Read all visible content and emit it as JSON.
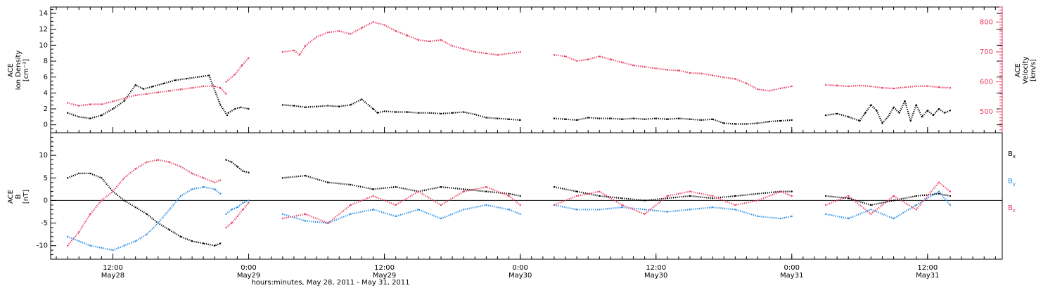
{
  "colors": {
    "black": "#000000",
    "red": "#e8385f",
    "blue": "#1e88e5"
  },
  "chart_data": [
    {
      "type": "scatter",
      "panel": "density-velocity",
      "ylabel_left_lines": [
        "ACE",
        "Ion Density",
        "[cm⁻³]"
      ],
      "ylabel_right_lines": [
        "ACE",
        "Velocity",
        "[km/s]"
      ],
      "ylim_left": [
        -1,
        14.8
      ],
      "ylim_right": [
        430,
        850
      ],
      "yticks_left": [
        0,
        2,
        4,
        6,
        8,
        10,
        12,
        14
      ],
      "yticks_right": [
        500,
        600,
        700,
        800
      ],
      "series": [
        {
          "color": "black",
          "axis": "left",
          "segments": [
            {
              "x": [
                8.0,
                9.0,
                10.0,
                11.0,
                12.0,
                13.0,
                14.0,
                14.7,
                15.5,
                16.5,
                17.5,
                18.5,
                19.5,
                20.5,
                21.5,
                22.1
              ],
              "y": [
                1.5,
                1.0,
                0.8,
                1.2,
                2.0,
                3.0,
                5.0,
                4.5,
                4.8,
                5.2,
                5.6,
                5.8,
                6.0,
                6.2,
                2.5,
                1.2
              ]
            },
            {
              "x": [
                22.2,
                22.8,
                23.3,
                24.0
              ],
              "y": [
                1.5,
                2.0,
                2.2,
                2.0
              ]
            },
            {
              "x": [
                27.0,
                28.0,
                29.0,
                30.0,
                31.0,
                32.0,
                33.0,
                34.0,
                35.0,
                35.4,
                36.0,
                37.0,
                38.0,
                39.0,
                40.0,
                41.0,
                42.0,
                43.0,
                44.0,
                45.0,
                46.0,
                47.0,
                48.0
              ],
              "y": [
                2.5,
                2.4,
                2.2,
                2.3,
                2.4,
                2.3,
                2.5,
                3.2,
                2.0,
                1.5,
                1.7,
                1.6,
                1.6,
                1.5,
                1.5,
                1.4,
                1.5,
                1.6,
                1.3,
                0.9,
                0.8,
                0.7,
                0.6
              ]
            },
            {
              "x": [
                51.0,
                52.0,
                53.0,
                54.0,
                55.0,
                56.0,
                57.0,
                58.0,
                59.0,
                60.0,
                61.0,
                62.0,
                63.0,
                64.0,
                65.0,
                66.0,
                67.0,
                68.0,
                69.0,
                70.0,
                71.0,
                72.0
              ],
              "y": [
                0.8,
                0.7,
                0.6,
                0.9,
                0.8,
                0.8,
                0.7,
                0.8,
                0.7,
                0.8,
                0.7,
                0.8,
                0.7,
                0.6,
                0.7,
                0.2,
                0.1,
                0.1,
                0.2,
                0.4,
                0.5,
                0.6
              ]
            },
            {
              "x": [
                75.0,
                76.0,
                77.0,
                78.0,
                78.5,
                79.0,
                79.5,
                80.0,
                80.5,
                81.0,
                81.5,
                82.0,
                82.5,
                83.0,
                83.5,
                84.0,
                84.5,
                85.0,
                85.5,
                86.0
              ],
              "y": [
                1.2,
                1.4,
                1.0,
                0.5,
                1.5,
                2.5,
                1.8,
                0.2,
                1.0,
                2.2,
                1.5,
                3.0,
                0.5,
                2.5,
                1.0,
                1.8,
                1.2,
                2.0,
                1.5,
                1.8
              ]
            }
          ]
        },
        {
          "color": "red",
          "axis": "right",
          "segments": [
            {
              "x": [
                8.0,
                9.0,
                10.0,
                11.0,
                12.0,
                13.0,
                14.0,
                15.0,
                16.0,
                17.0,
                18.0,
                19.0,
                20.0,
                21.0,
                21.5,
                22.0
              ],
              "y": [
                530,
                520,
                525,
                525,
                535,
                545,
                555,
                560,
                565,
                570,
                575,
                580,
                585,
                585,
                580,
                560
              ]
            },
            {
              "x": [
                22.0,
                22.8,
                23.4,
                24.0
              ],
              "y": [
                600,
                625,
                655,
                680
              ]
            },
            {
              "x": [
                27.0,
                28.0,
                28.5,
                29.0,
                30.0,
                31.0,
                32.0,
                33.0,
                34.0,
                35.0,
                36.0,
                37.0,
                38.0,
                39.0,
                40.0,
                41.0,
                42.0,
                43.0,
                44.0,
                45.0,
                46.0,
                47.0,
                48.0
              ],
              "y": [
                700,
                705,
                690,
                720,
                750,
                765,
                770,
                760,
                780,
                800,
                790,
                770,
                755,
                740,
                735,
                740,
                720,
                710,
                700,
                695,
                690,
                695,
                700
              ]
            },
            {
              "x": [
                51.0,
                52.0,
                53.0,
                54.0,
                55.0,
                56.0,
                57.0,
                58.0,
                59.0,
                60.0,
                61.0,
                62.0,
                63.0,
                64.0,
                65.0,
                66.0,
                67.0,
                68.0,
                69.0,
                70.0,
                71.0,
                72.0
              ],
              "y": [
                690,
                685,
                670,
                675,
                685,
                675,
                665,
                655,
                650,
                645,
                640,
                638,
                630,
                628,
                622,
                615,
                610,
                595,
                575,
                570,
                578,
                585
              ]
            },
            {
              "x": [
                75.0,
                76.0,
                77.0,
                78.0,
                79.0,
                80.0,
                81.0,
                82.0,
                83.0,
                84.0,
                85.0,
                86.0
              ],
              "y": [
                590,
                588,
                585,
                588,
                585,
                580,
                578,
                582,
                585,
                586,
                582,
                580
              ]
            }
          ]
        }
      ]
    },
    {
      "type": "scatter",
      "panel": "magnetic-field",
      "ylabel_lines": [
        "ACE",
        "B",
        "[nT]"
      ],
      "ylim": [
        -13,
        15
      ],
      "yticks": [
        -10,
        -5,
        0,
        5,
        10
      ],
      "zero_line": true,
      "legend": [
        {
          "label": "B",
          "sub": "x",
          "color": "black"
        },
        {
          "label": "B",
          "sub": "y",
          "color": "blue"
        },
        {
          "label": "B",
          "sub": "z",
          "color": "red"
        }
      ],
      "series": [
        {
          "name": "Bx",
          "color": "black",
          "segments": [
            {
              "x": [
                8.0,
                9.0,
                10.0,
                11.0,
                12.0,
                13.0,
                14.0,
                15.0,
                16.0,
                17.0,
                18.0,
                19.0,
                20.0,
                21.0,
                21.5
              ],
              "y": [
                5.0,
                6.0,
                6.0,
                5.0,
                2.0,
                0.0,
                -1.5,
                -3.0,
                -5.0,
                -6.5,
                -8.0,
                -9.0,
                -9.5,
                -10.0,
                -9.5
              ]
            },
            {
              "x": [
                22.0,
                22.5,
                23.0,
                23.5,
                24.0
              ],
              "y": [
                9.0,
                8.5,
                7.5,
                6.5,
                6.2
              ]
            },
            {
              "x": [
                27.0,
                29.0,
                31.0,
                33.0,
                35.0,
                37.0,
                39.0,
                41.0,
                43.0,
                45.0,
                47.0,
                48.0
              ],
              "y": [
                5.0,
                5.5,
                4.0,
                3.5,
                2.5,
                3.0,
                2.0,
                3.0,
                2.5,
                2.0,
                1.5,
                1.0
              ]
            },
            {
              "x": [
                51.0,
                53.0,
                55.0,
                57.0,
                59.0,
                61.0,
                63.0,
                65.0,
                67.0,
                69.0,
                71.0,
                72.0
              ],
              "y": [
                3.0,
                2.0,
                1.0,
                0.5,
                0.0,
                0.5,
                1.0,
                0.5,
                1.0,
                1.5,
                2.0,
                2.0
              ]
            },
            {
              "x": [
                75.0,
                77.0,
                79.0,
                81.0,
                83.0,
                85.0,
                86.0
              ],
              "y": [
                1.0,
                0.5,
                -1.0,
                0.0,
                1.0,
                1.5,
                1.0
              ]
            }
          ]
        },
        {
          "name": "By",
          "color": "blue",
          "segments": [
            {
              "x": [
                8.0,
                9.0,
                10.0,
                11.0,
                12.0,
                13.0,
                14.0,
                15.0,
                16.0,
                17.0,
                18.0,
                19.0,
                20.0,
                21.0,
                21.5
              ],
              "y": [
                -8.0,
                -9.0,
                -10.0,
                -10.5,
                -11.0,
                -10.0,
                -9.0,
                -7.5,
                -5.0,
                -2.0,
                1.0,
                2.5,
                3.0,
                2.5,
                1.5
              ]
            },
            {
              "x": [
                22.0,
                22.5,
                23.0,
                23.5,
                24.0
              ],
              "y": [
                -3.0,
                -2.0,
                -1.5,
                -0.5,
                0.0
              ]
            },
            {
              "x": [
                27.0,
                29.0,
                31.0,
                33.0,
                35.0,
                37.0,
                39.0,
                41.0,
                43.0,
                45.0,
                47.0,
                48.0
              ],
              "y": [
                -3.0,
                -4.5,
                -5.0,
                -3.0,
                -2.0,
                -3.5,
                -2.0,
                -4.0,
                -2.0,
                -1.0,
                -2.0,
                -3.0
              ]
            },
            {
              "x": [
                51.0,
                53.0,
                55.0,
                57.0,
                59.0,
                61.0,
                63.0,
                65.0,
                67.0,
                69.0,
                71.0,
                72.0
              ],
              "y": [
                -1.0,
                -2.0,
                -2.0,
                -1.5,
                -2.0,
                -2.5,
                -2.0,
                -1.5,
                -2.0,
                -3.5,
                -4.0,
                -3.5
              ]
            },
            {
              "x": [
                75.0,
                77.0,
                79.0,
                81.0,
                83.0,
                85.0,
                86.0
              ],
              "y": [
                -3.0,
                -4.0,
                -2.0,
                -4.0,
                -1.0,
                2.0,
                -1.0
              ]
            }
          ]
        },
        {
          "name": "Bz",
          "color": "red",
          "segments": [
            {
              "x": [
                8.0,
                9.0,
                10.0,
                11.0,
                12.0,
                13.0,
                14.0,
                15.0,
                16.0,
                17.0,
                18.0,
                19.0,
                20.0,
                21.0,
                21.5
              ],
              "y": [
                -10.0,
                -7.0,
                -3.0,
                0.0,
                2.0,
                5.0,
                7.0,
                8.5,
                9.0,
                8.5,
                7.5,
                6.0,
                5.0,
                4.0,
                4.5
              ]
            },
            {
              "x": [
                22.0,
                22.5,
                23.0,
                23.5,
                24.0
              ],
              "y": [
                -6.0,
                -5.0,
                -3.5,
                -2.0,
                -0.5
              ]
            },
            {
              "x": [
                27.0,
                29.0,
                31.0,
                33.0,
                35.0,
                37.0,
                39.0,
                41.0,
                43.0,
                45.0,
                47.0,
                48.0
              ],
              "y": [
                -4.0,
                -3.0,
                -5.0,
                -1.0,
                1.0,
                -1.0,
                2.0,
                -1.0,
                2.0,
                3.0,
                1.0,
                -1.0
              ]
            },
            {
              "x": [
                51.0,
                53.0,
                55.0,
                57.0,
                59.0,
                61.0,
                63.0,
                65.0,
                67.0,
                69.0,
                71.0,
                72.0
              ],
              "y": [
                -1.0,
                1.0,
                2.0,
                -1.0,
                -3.0,
                1.0,
                2.0,
                1.0,
                -1.0,
                0.0,
                2.0,
                1.0
              ]
            },
            {
              "x": [
                75.0,
                77.0,
                79.0,
                81.0,
                83.0,
                85.0,
                86.0
              ],
              "y": [
                -1.0,
                1.0,
                -3.0,
                1.0,
                -2.0,
                4.0,
                2.0
              ]
            }
          ]
        }
      ]
    }
  ],
  "x_axis": {
    "xlim": [
      6.5,
      90.6
    ],
    "ticks": [
      {
        "x": 12,
        "time": "12:00",
        "date": "May28"
      },
      {
        "x": 24,
        "time": "0:00",
        "date": "May29"
      },
      {
        "x": 36,
        "time": "12:00",
        "date": "May29"
      },
      {
        "x": 48,
        "time": "0:00",
        "date": "May30"
      },
      {
        "x": 60,
        "time": "12:00",
        "date": "May30"
      },
      {
        "x": 72,
        "time": "0:00",
        "date": "May31"
      },
      {
        "x": 84,
        "time": "12:00",
        "date": "May31"
      }
    ],
    "label": "hours:minutes, May 28, 2011 - May 31, 2011"
  }
}
